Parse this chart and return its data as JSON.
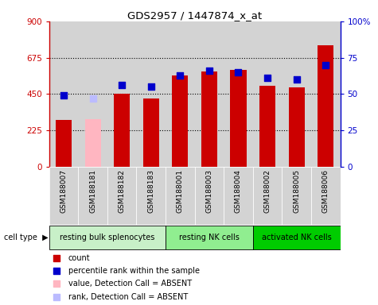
{
  "title": "GDS2957 / 1447874_x_at",
  "samples": [
    "GSM188007",
    "GSM188181",
    "GSM188182",
    "GSM188183",
    "GSM188001",
    "GSM188003",
    "GSM188004",
    "GSM188002",
    "GSM188005",
    "GSM188006"
  ],
  "counts": [
    290,
    295,
    450,
    420,
    565,
    590,
    600,
    500,
    490,
    750
  ],
  "percentiles": [
    49,
    47,
    56,
    55,
    63,
    66,
    65,
    61,
    60,
    70
  ],
  "absent": [
    false,
    true,
    false,
    false,
    false,
    false,
    false,
    false,
    false,
    false
  ],
  "cell_types": [
    {
      "label": "resting bulk splenocytes",
      "start": 0,
      "end": 4,
      "color": "#c8f0c8"
    },
    {
      "label": "resting NK cells",
      "start": 4,
      "end": 7,
      "color": "#90ee90"
    },
    {
      "label": "activated NK cells",
      "start": 7,
      "end": 10,
      "color": "#00cc00"
    }
  ],
  "ylim_left": [
    0,
    900
  ],
  "ylim_right": [
    0,
    100
  ],
  "yticks_left": [
    0,
    225,
    450,
    675,
    900
  ],
  "yticks_right": [
    0,
    25,
    50,
    75,
    100
  ],
  "bar_color_present": "#cc0000",
  "bar_color_absent": "#ffb6c1",
  "dot_color_present": "#0000cc",
  "dot_color_absent": "#bbbbff",
  "bar_width": 0.55,
  "dot_size": 35,
  "bg_color": "#ffffff",
  "sample_bg_color": "#d3d3d3",
  "left_axis_color": "#cc0000",
  "right_axis_color": "#0000cc",
  "grid_dotted_color": "#000000",
  "cell_type_label_color": "#000000",
  "legend_items": [
    {
      "color": "#cc0000",
      "label": "count"
    },
    {
      "color": "#0000cc",
      "label": "percentile rank within the sample"
    },
    {
      "color": "#ffb6c1",
      "label": "value, Detection Call = ABSENT"
    },
    {
      "color": "#bbbbff",
      "label": "rank, Detection Call = ABSENT"
    }
  ]
}
